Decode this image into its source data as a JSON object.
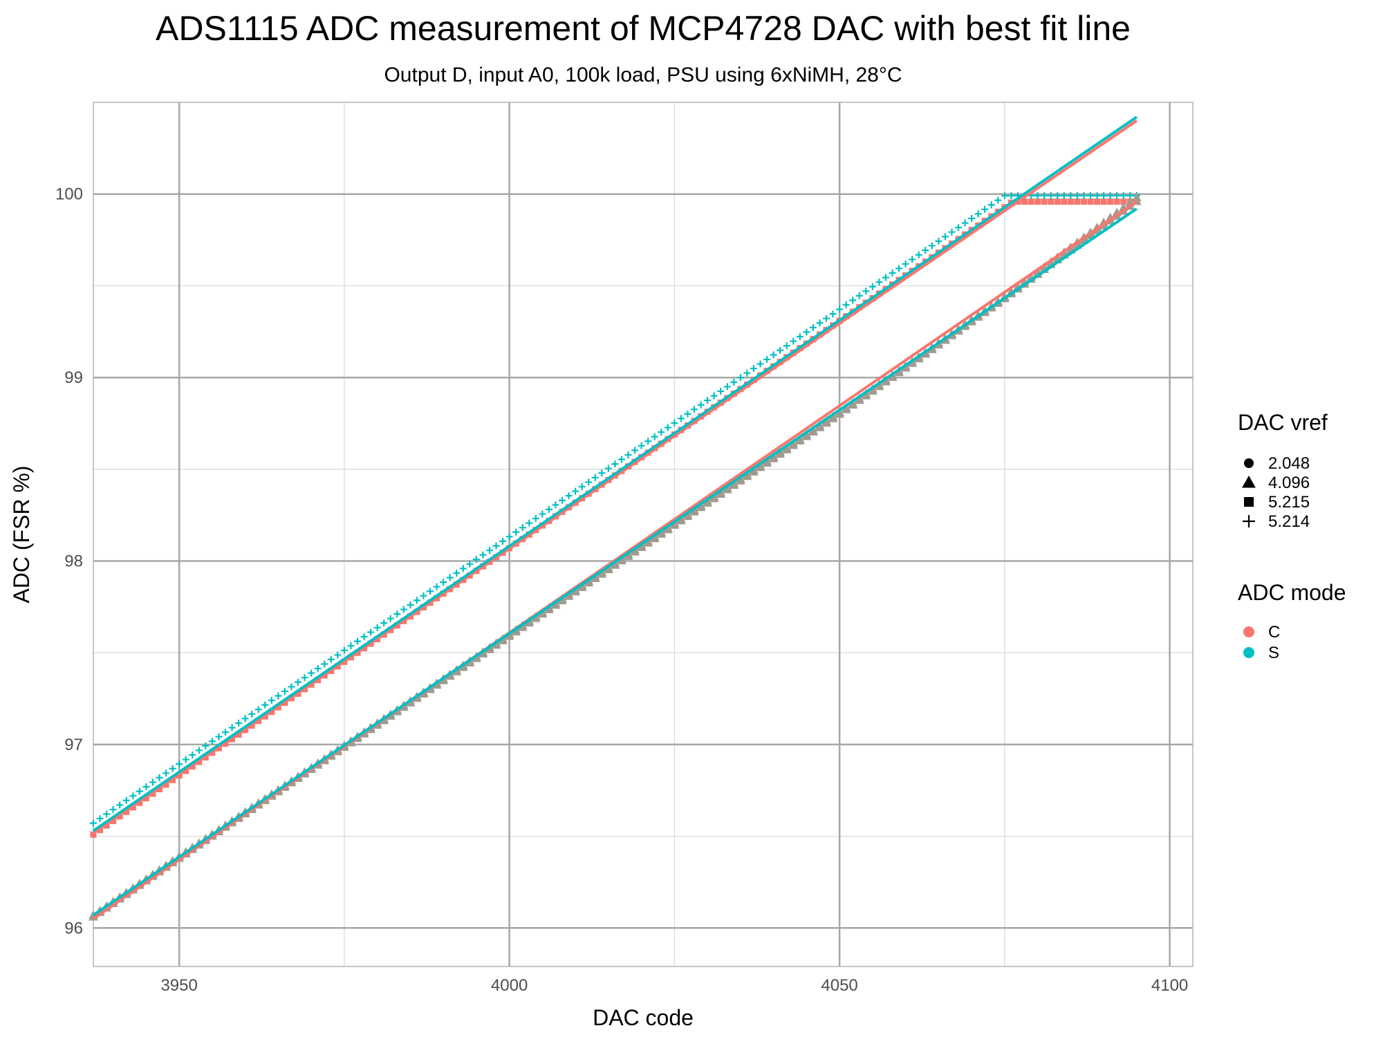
{
  "chart_data": {
    "type": "scatter",
    "title": "ADS1115 ADC measurement of MCP4728 DAC with best fit line",
    "subtitle": "Output D, input A0, 100k load, PSU using 6xNiMH, 28°C",
    "xlabel": "DAC code",
    "ylabel": "ADC (FSR %)",
    "xlim": [
      3937,
      4103.5
    ],
    "ylim": [
      95.79,
      100.5
    ],
    "x_ticks": [
      3950,
      4000,
      4050,
      4100
    ],
    "x_tick_labels": [
      "3950",
      "4000",
      "4050",
      "4100"
    ],
    "y_ticks": [
      96,
      97,
      98,
      99,
      100
    ],
    "y_tick_labels": [
      "96",
      "97",
      "98",
      "99",
      "100"
    ],
    "grid": true,
    "legend_placement": "right",
    "legends": [
      {
        "title": "DAC vref",
        "entries": [
          {
            "label": "2.048",
            "shape": "circle"
          },
          {
            "label": "4.096",
            "shape": "triangle"
          },
          {
            "label": "5.215",
            "shape": "square"
          },
          {
            "label": "5.214",
            "shape": "plus"
          }
        ]
      },
      {
        "title": "ADC mode",
        "entries": [
          {
            "label": "C",
            "color": "#F8766D"
          },
          {
            "label": "S",
            "color": "#00BFC4"
          }
        ]
      }
    ],
    "colors": {
      "C": "#F8766D",
      "S": "#00BFC4",
      "overlap": "#a09a8f"
    },
    "series": [
      {
        "mode": "C",
        "vref": "5.215",
        "shape": "square",
        "x_range": [
          3937,
          4095
        ],
        "start_y": 96.52,
        "slope": 0.02478,
        "saturation": 99.97
      },
      {
        "mode": "S",
        "vref": "5.214",
        "shape": "plus",
        "x_range": [
          3937,
          4095
        ],
        "start_y": 96.56,
        "slope": 0.02478,
        "saturation": 99.98
      },
      {
        "mode": "C",
        "vref": "4.096",
        "shape": "triangle",
        "x_range": [
          3937,
          4095
        ],
        "points": [
          [
            3937,
            96.06
          ],
          [
            3950,
            96.38
          ],
          [
            4000,
            97.59
          ],
          [
            4050,
            98.8
          ],
          [
            4075,
            99.43
          ],
          [
            4095,
            99.96
          ]
        ]
      },
      {
        "mode": "S",
        "vref": "4.096",
        "shape": "triangle",
        "x_range": [
          3937,
          4095
        ],
        "points": [
          [
            3937,
            96.07
          ],
          [
            3950,
            96.39
          ],
          [
            4000,
            97.6
          ],
          [
            4050,
            98.81
          ],
          [
            4075,
            99.44
          ],
          [
            4095,
            99.98
          ]
        ]
      }
    ],
    "fit_lines": [
      {
        "mode": "C",
        "vref": "5.215",
        "x1": 3937,
        "y1": 96.52,
        "x2": 4095,
        "y2": 100.4
      },
      {
        "mode": "S",
        "vref": "5.214",
        "x1": 3937,
        "y1": 96.53,
        "x2": 4095,
        "y2": 100.42
      },
      {
        "mode": "C",
        "vref": "4.096",
        "x1": 3937,
        "y1": 96.05,
        "x2": 4095,
        "y2": 99.96
      },
      {
        "mode": "S",
        "vref": "4.096",
        "x1": 3937,
        "y1": 96.07,
        "x2": 4095,
        "y2": 99.92
      }
    ]
  }
}
